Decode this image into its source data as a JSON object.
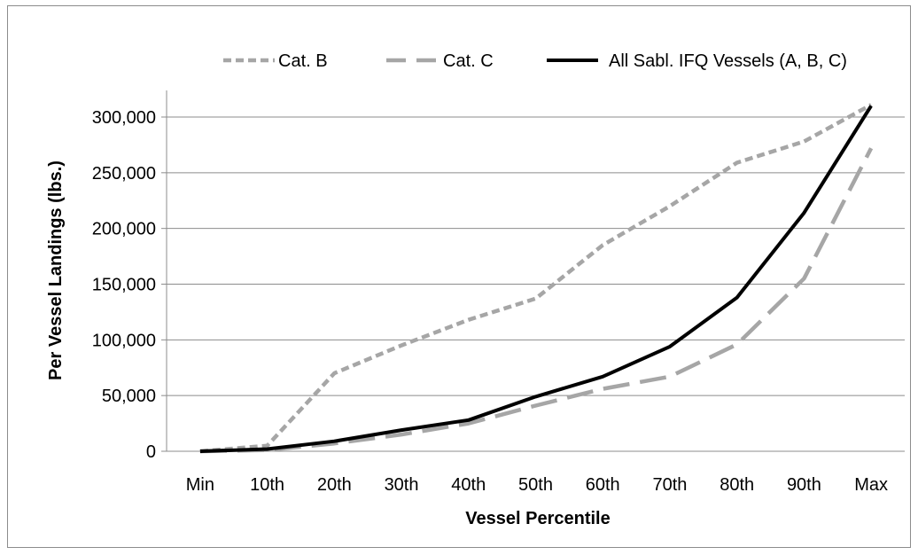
{
  "chart_data": {
    "type": "line",
    "title": "",
    "xlabel": "Vessel Percentile",
    "ylabel": "Per Vessel Landings (lbs.)",
    "categories": [
      "Min",
      "10th",
      "20th",
      "30th",
      "40th",
      "50th",
      "60th",
      "70th",
      "80th",
      "90th",
      "Max"
    ],
    "ylim": [
      0,
      300000
    ],
    "yticks": [
      0,
      50000,
      100000,
      150000,
      200000,
      250000,
      300000
    ],
    "ytick_labels": [
      "0",
      "50,000",
      "100,000",
      "150,000",
      "200,000",
      "250,000",
      "300,000"
    ],
    "grid": "horizontal",
    "legend_position": "top",
    "series": [
      {
        "name": "Cat. B",
        "color": "#a6a6a6",
        "style": "short-dash",
        "values": [
          0,
          5000,
          70000,
          95000,
          118000,
          137000,
          185000,
          220000,
          259000,
          278000,
          311000
        ]
      },
      {
        "name": "Cat. C",
        "color": "#a6a6a6",
        "style": "long-dash",
        "values": [
          0,
          1000,
          7000,
          15000,
          25000,
          41000,
          56000,
          67000,
          96000,
          155000,
          272000
        ]
      },
      {
        "name": "All Sabl. IFQ Vessels (A, B, C)",
        "color": "#000000",
        "style": "solid",
        "values": [
          0,
          2000,
          9000,
          19000,
          28000,
          49000,
          67000,
          94000,
          138000,
          214000,
          310000
        ]
      }
    ]
  }
}
